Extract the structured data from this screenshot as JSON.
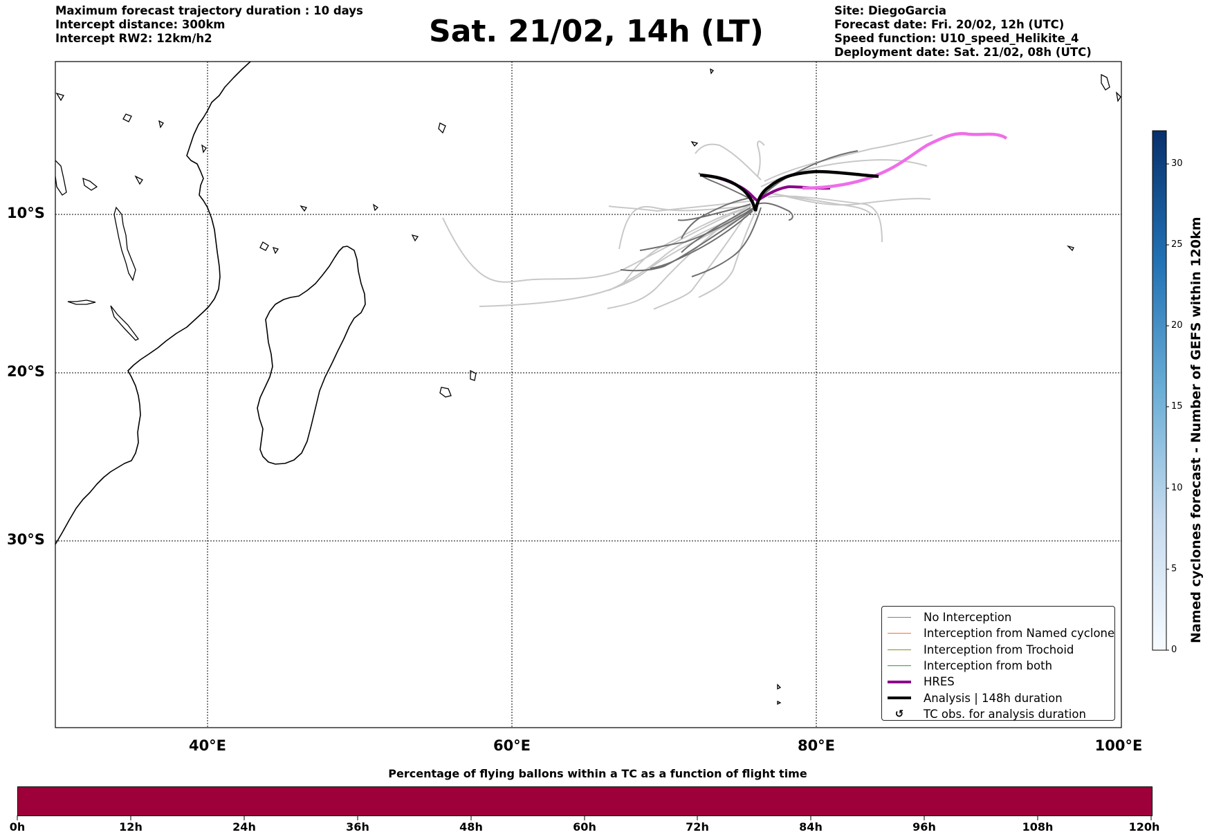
{
  "header_left": {
    "line1": "Maximum forecast trajectory duration : 10 days",
    "line2": "Intercept distance: 300km",
    "line3": "Intercept RW2: 12km/h2"
  },
  "title": "Sat. 21/02, 14h (LT)",
  "header_right": {
    "line1": "Site: DiegoGarcia",
    "line2": "Forecast date: Fri. 20/02, 12h (UTC)",
    "line3": "Speed function: U10_speed_Helikite_4",
    "line4": "Deployment date: Sat. 21/02, 08h (UTC)"
  },
  "map": {
    "lat_labels": [
      "10°S",
      "20°S",
      "30°S"
    ],
    "lon_labels": [
      "40°E",
      "60°E",
      "80°E",
      "100°E"
    ],
    "land_color": "#ffffff",
    "gridline_style": "dotted"
  },
  "legend": {
    "items": [
      {
        "label": "No Interception",
        "color": "#7f7f7f",
        "style": "thin"
      },
      {
        "label": "Interception from Named cyclone",
        "color": "#ff6a2b",
        "style": "thin"
      },
      {
        "label": "Interception from Trochoid",
        "color": "#8b8b1a",
        "style": "thin"
      },
      {
        "label": "Interception from both",
        "color": "#2ca02c",
        "style": "thin"
      },
      {
        "label": "HRES",
        "color": "#8b008b",
        "style": "thick"
      },
      {
        "label": "Analysis | 148h duration",
        "color": "#000000",
        "style": "thick"
      },
      {
        "label": "TC obs. for analysis duration",
        "color": "#000000",
        "style": "cyclone-symbol",
        "symbol": "↺"
      }
    ]
  },
  "colorbar_right": {
    "label": "Named cyclones forecast - Number of GEFS within 120km",
    "ticks": [
      "0",
      "5",
      "10",
      "15",
      "20",
      "25",
      "30"
    ],
    "min": 0,
    "max": 32,
    "colormap": "Blues"
  },
  "colorbar_bottom": {
    "title": "Percentage of flying ballons within a TC as a function of flight time",
    "ticks": [
      "0h",
      "12h",
      "24h",
      "36h",
      "48h",
      "60h",
      "72h",
      "84h",
      "96h",
      "108h",
      "120h"
    ],
    "fill_color": "#9e003a"
  },
  "tracks": {
    "hres_color": "#8b008b",
    "hres_late_color": "#ee6ee9",
    "analysis_color": "#000000"
  }
}
